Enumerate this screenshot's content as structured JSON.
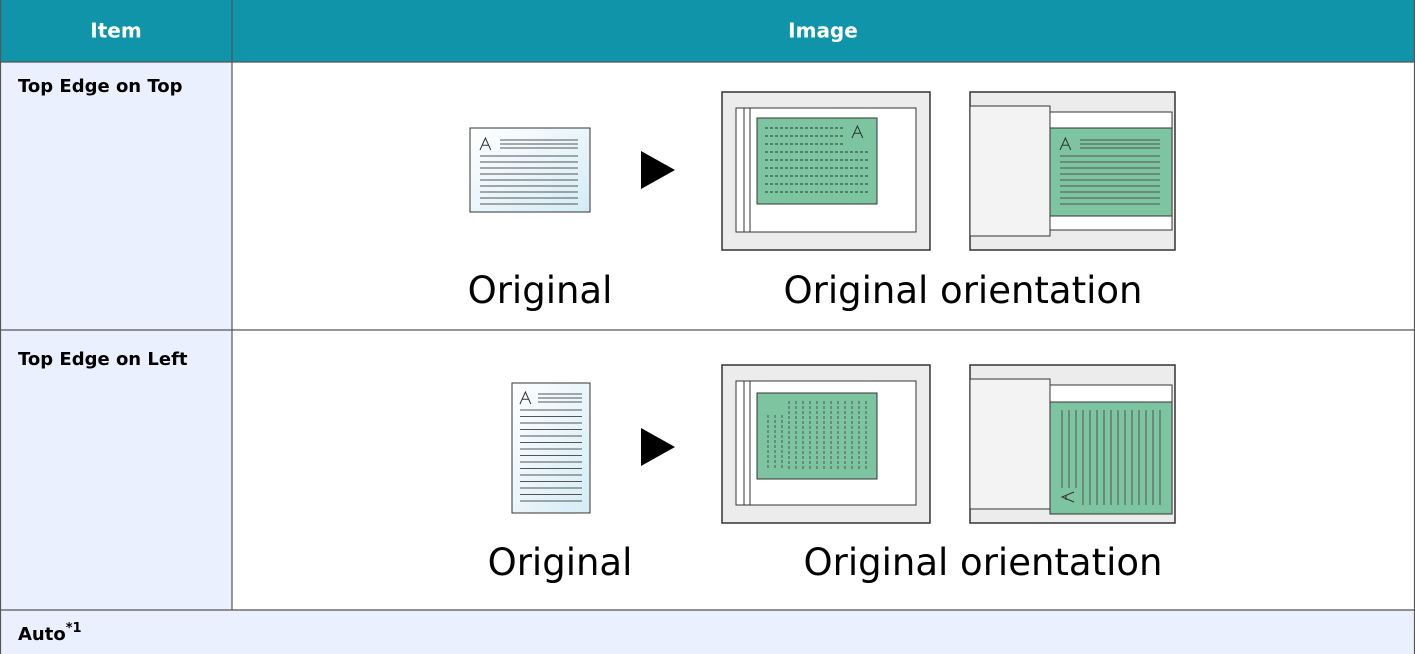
{
  "table": {
    "header": [
      "Item",
      "Image"
    ],
    "rows": [
      {
        "item": "Top Edge on Top",
        "captions": [
          "Original",
          "Original orientation"
        ]
      },
      {
        "item": "Top Edge on Left",
        "captions": [
          "Original",
          "Original orientation"
        ]
      },
      {
        "item": "Auto",
        "note": "*1"
      }
    ]
  }
}
